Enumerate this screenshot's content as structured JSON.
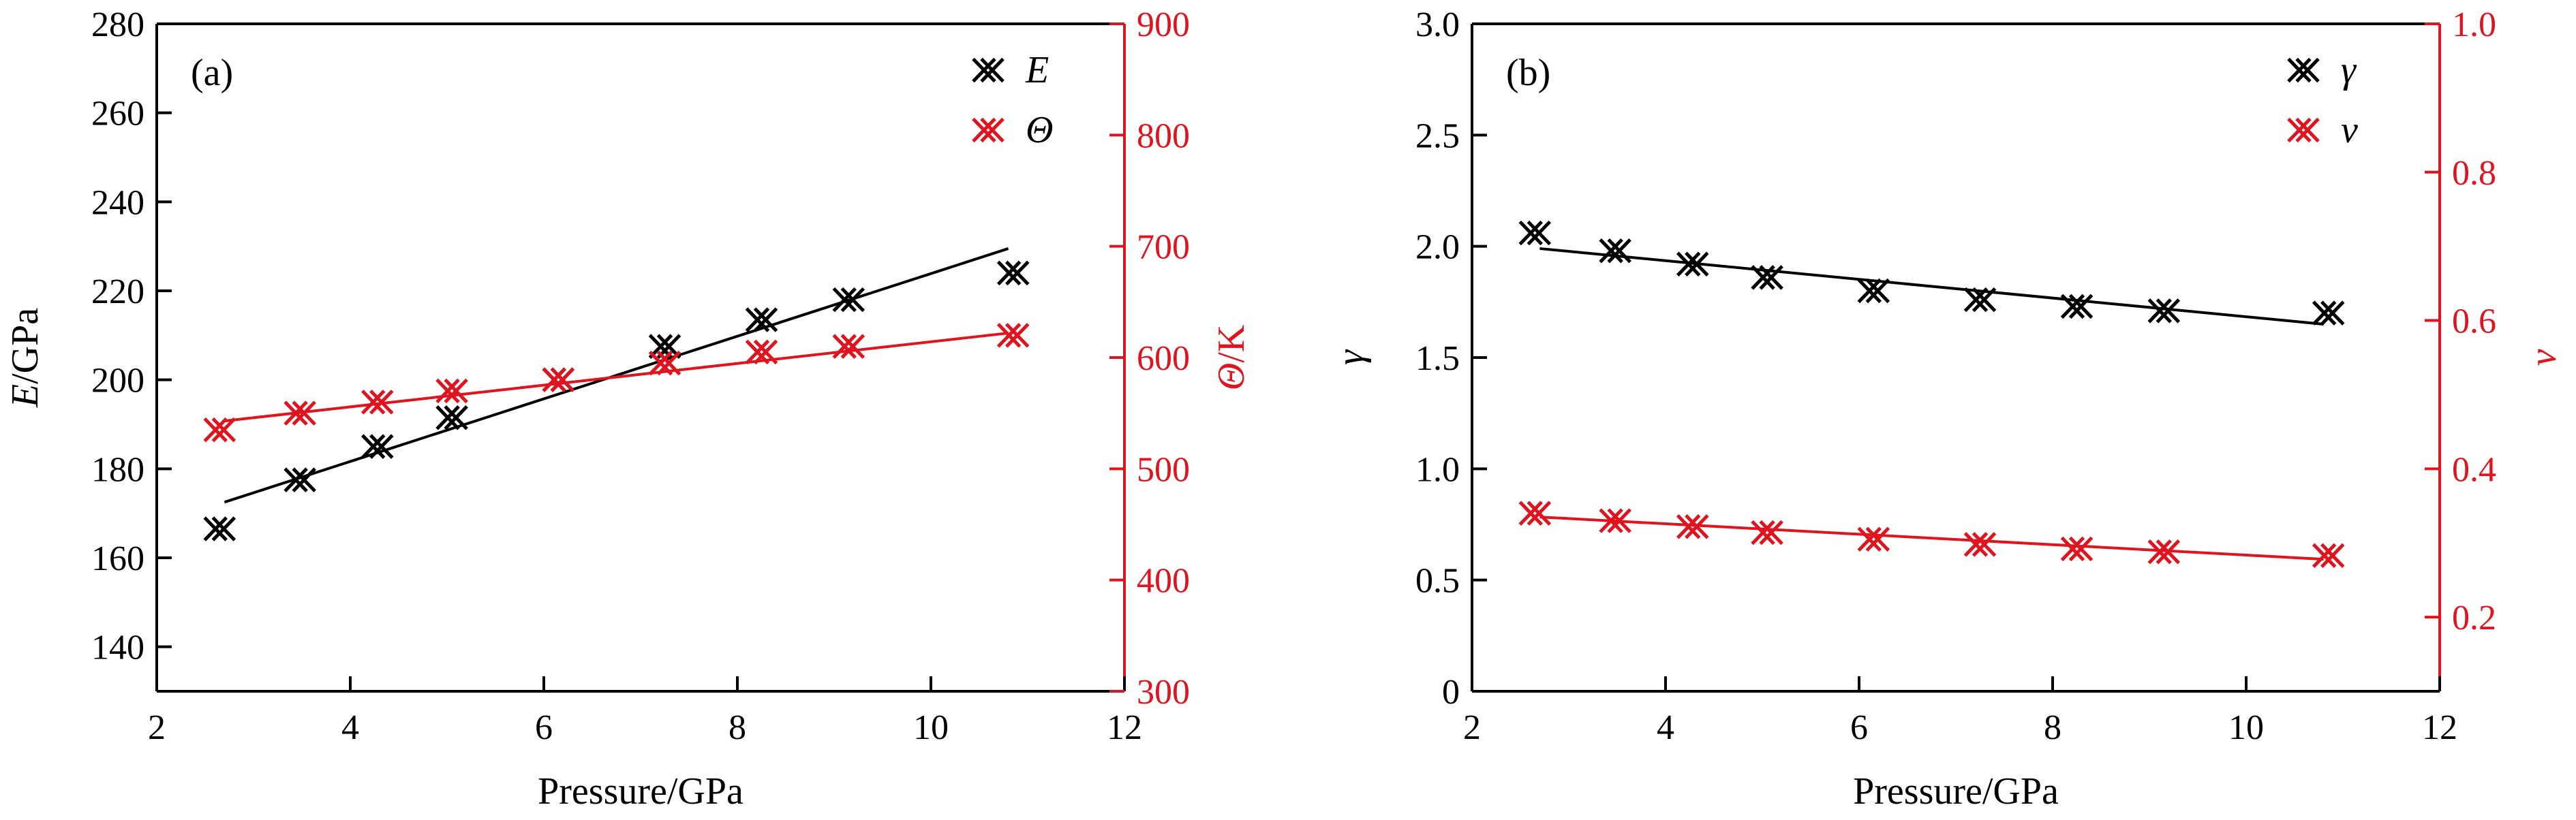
{
  "chart_data": [
    {
      "type": "scatter",
      "panel_label": "(a)",
      "xlabel": "Pressure/GPa",
      "xlim": [
        2,
        12
      ],
      "xticks": [
        "2",
        "4",
        "6",
        "8",
        "10",
        "12"
      ],
      "left_axis": {
        "label_italic": "E",
        "label_rest": "/GPa",
        "ylim": [
          130,
          280
        ],
        "ticks": [
          "140",
          "160",
          "180",
          "200",
          "220",
          "240",
          "260",
          "280"
        ],
        "color": "#000000"
      },
      "right_axis": {
        "label_italic": "Θ",
        "label_rest": "/K",
        "ylim": [
          300,
          900
        ],
        "ticks": [
          "300",
          "400",
          "500",
          "600",
          "700",
          "800",
          "900"
        ],
        "color": "#e0141e"
      },
      "x": [
        2.65,
        3.48,
        4.28,
        5.05,
        6.15,
        7.25,
        8.25,
        9.15,
        10.85
      ],
      "series": [
        {
          "name": "E",
          "axis": "left",
          "color": "#000000",
          "values": [
            166.5,
            177.5,
            185.0,
            191.5,
            200.0,
            207.5,
            213.5,
            218.0,
            224.0
          ],
          "fit": {
            "x": [
              2.7,
              10.8
            ],
            "y": [
              172.5,
              229.5
            ]
          }
        },
        {
          "name": "Θ",
          "axis": "right",
          "color": "#e0141e",
          "values": [
            535,
            550,
            560,
            570,
            580,
            595,
            605,
            610,
            620
          ],
          "fit": {
            "x": [
              2.7,
              10.8
            ],
            "y": [
              543,
              622
            ]
          }
        }
      ]
    },
    {
      "type": "scatter",
      "panel_label": "(b)",
      "xlabel": "Pressure/GPa",
      "xlim": [
        2,
        12
      ],
      "xticks": [
        "2",
        "4",
        "6",
        "8",
        "10",
        "12"
      ],
      "left_axis": {
        "label_italic": "γ",
        "label_rest": "",
        "ylim": [
          0,
          3.0
        ],
        "ticks": [
          "0",
          "0.5",
          "1.0",
          "1.5",
          "2.0",
          "2.5",
          "3.0"
        ],
        "color": "#000000"
      },
      "right_axis": {
        "label_italic": "ν",
        "label_rest": "",
        "ylim": [
          0.1,
          1.0
        ],
        "ticks": [
          "0.2",
          "0.4",
          "0.6",
          "0.8",
          "1.0"
        ],
        "color": "#e0141e"
      },
      "x": [
        2.65,
        3.48,
        4.28,
        5.05,
        6.15,
        7.25,
        8.25,
        9.15,
        10.85
      ],
      "series": [
        {
          "name": "γ",
          "axis": "left",
          "color": "#000000",
          "values": [
            2.06,
            1.98,
            1.92,
            1.86,
            1.8,
            1.76,
            1.73,
            1.71,
            1.7
          ],
          "fit": {
            "x": [
              2.7,
              10.8
            ],
            "y": [
              1.99,
              1.65
            ]
          }
        },
        {
          "name": "ν",
          "axis": "right",
          "color": "#e0141e",
          "values": [
            0.34,
            0.33,
            0.322,
            0.314,
            0.305,
            0.298,
            0.292,
            0.288,
            0.283
          ],
          "fit": {
            "x": [
              2.7,
              10.8
            ],
            "y": [
              0.335,
              0.278
            ]
          }
        }
      ]
    }
  ]
}
